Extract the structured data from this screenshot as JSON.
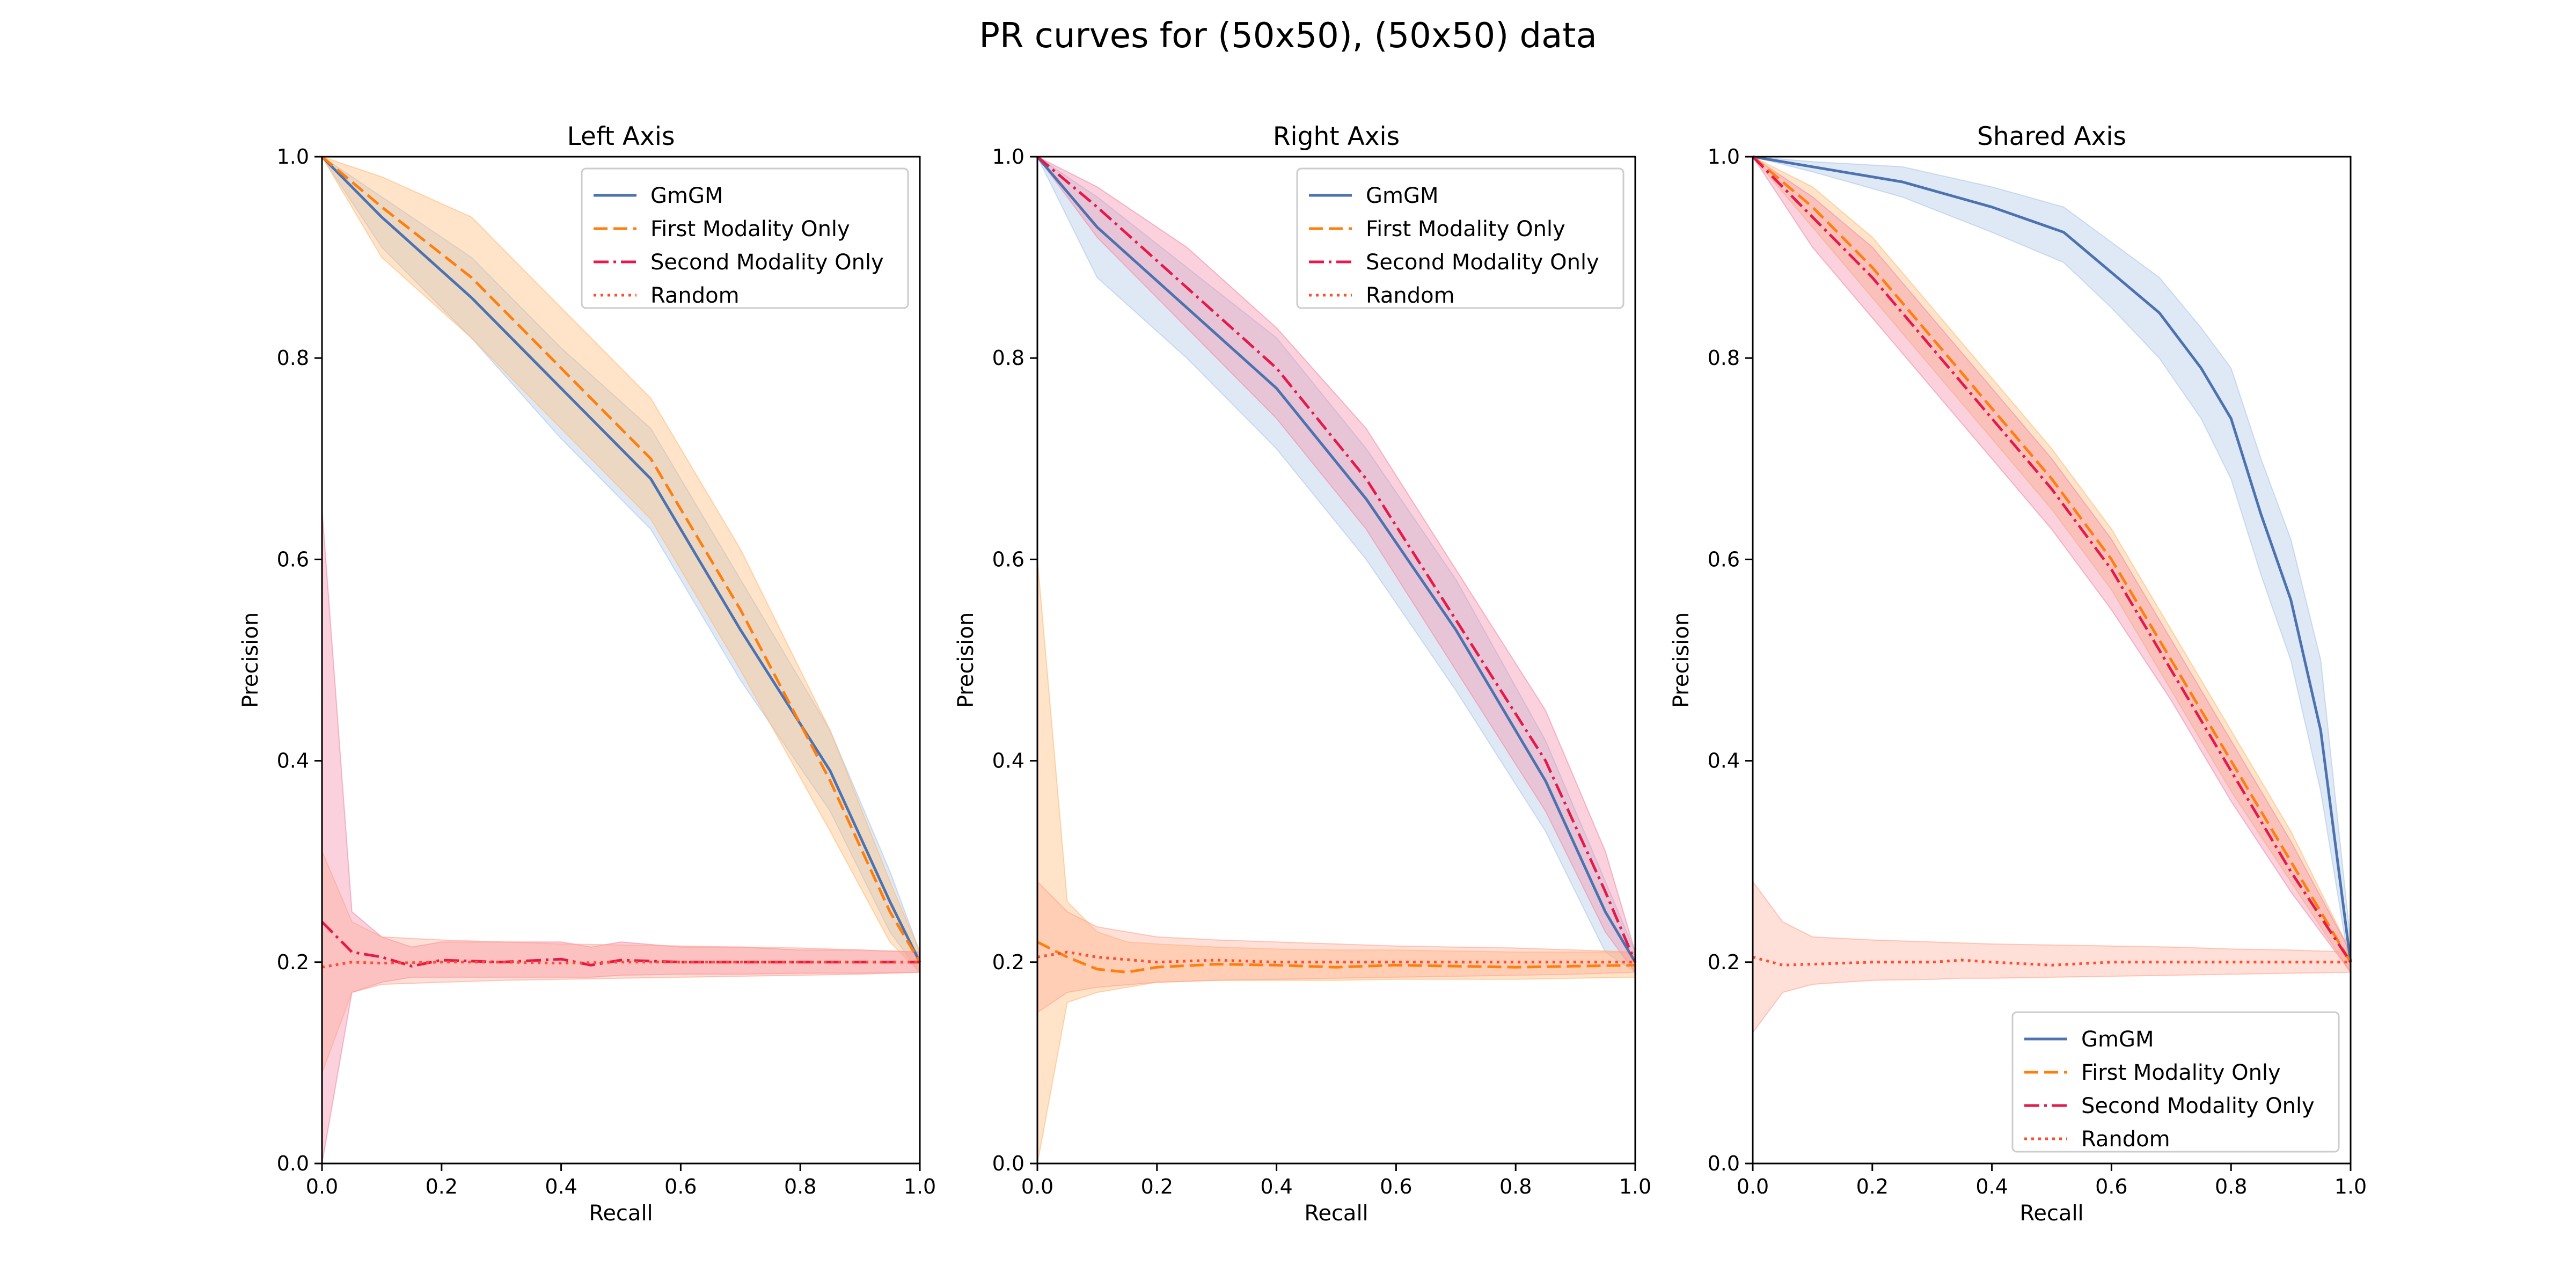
{
  "figure": {
    "title": "PR curves for (50x50), (50x50) data"
  },
  "styles": {
    "series_colors": [
      "#4c72b0",
      "#ff7f0e",
      "#e6194b",
      "#ff4d2e"
    ],
    "band_colors": [
      "#aec7e8",
      "#ffbb78",
      "#f28ca8",
      "#ffa590"
    ],
    "band_opacity": [
      0.4,
      0.4,
      0.4,
      0.35
    ],
    "dash": [
      "",
      "26,11",
      "28,9,5,9",
      "5,8"
    ]
  },
  "chart_data": [
    {
      "type": "line",
      "title": "Left Axis",
      "xlabel": "Recall",
      "ylabel": "Precision",
      "xlim": [
        0,
        1
      ],
      "ylim": [
        0,
        1
      ],
      "xticks": [
        "0.0",
        "0.2",
        "0.4",
        "0.6",
        "0.8",
        "1.0"
      ],
      "yticks": [
        "0.0",
        "0.2",
        "0.4",
        "0.6",
        "0.8",
        "1.0"
      ],
      "legend": "upper-right",
      "series": [
        {
          "name": "GmGM",
          "x": [
            0,
            0.1,
            0.25,
            0.4,
            0.55,
            0.7,
            0.85,
            0.95,
            1.0
          ],
          "y": [
            1.0,
            0.94,
            0.86,
            0.77,
            0.68,
            0.53,
            0.39,
            0.26,
            0.2
          ],
          "lower": [
            1.0,
            0.91,
            0.82,
            0.72,
            0.63,
            0.48,
            0.35,
            0.23,
            0.19
          ],
          "upper": [
            1.0,
            0.96,
            0.9,
            0.81,
            0.73,
            0.58,
            0.43,
            0.29,
            0.21
          ]
        },
        {
          "name": "First Modality Only",
          "x": [
            0,
            0.1,
            0.25,
            0.4,
            0.55,
            0.7,
            0.85,
            0.95,
            1.0
          ],
          "y": [
            1.0,
            0.95,
            0.88,
            0.79,
            0.7,
            0.55,
            0.38,
            0.25,
            0.2
          ],
          "lower": [
            1.0,
            0.9,
            0.82,
            0.73,
            0.64,
            0.49,
            0.33,
            0.22,
            0.19
          ],
          "upper": [
            1.0,
            0.98,
            0.94,
            0.85,
            0.76,
            0.61,
            0.43,
            0.28,
            0.21
          ]
        },
        {
          "name": "Second Modality Only",
          "x": [
            0,
            0.05,
            0.1,
            0.15,
            0.2,
            0.3,
            0.4,
            0.45,
            0.5,
            0.6,
            0.7,
            0.8,
            0.9,
            1.0
          ],
          "y": [
            0.24,
            0.21,
            0.205,
            0.196,
            0.202,
            0.2,
            0.203,
            0.197,
            0.202,
            0.2,
            0.2,
            0.2,
            0.2,
            0.2
          ],
          "lower": [
            0.0,
            0.17,
            0.18,
            0.185,
            0.185,
            0.185,
            0.185,
            0.185,
            0.187,
            0.188,
            0.188,
            0.189,
            0.189,
            0.19
          ],
          "upper": [
            0.65,
            0.25,
            0.225,
            0.215,
            0.22,
            0.22,
            0.22,
            0.215,
            0.22,
            0.215,
            0.215,
            0.212,
            0.212,
            0.21
          ]
        },
        {
          "name": "Random",
          "x": [
            0,
            0.05,
            0.1,
            0.2,
            0.3,
            0.4,
            0.5,
            0.6,
            0.7,
            0.8,
            0.9,
            1.0
          ],
          "y": [
            0.195,
            0.2,
            0.199,
            0.2,
            0.2,
            0.199,
            0.2,
            0.2,
            0.2,
            0.2,
            0.2,
            0.2
          ],
          "lower": [
            0.09,
            0.17,
            0.178,
            0.18,
            0.182,
            0.183,
            0.184,
            0.185,
            0.186,
            0.187,
            0.188,
            0.19
          ],
          "upper": [
            0.31,
            0.24,
            0.225,
            0.222,
            0.22,
            0.218,
            0.217,
            0.216,
            0.215,
            0.214,
            0.212,
            0.21
          ]
        }
      ]
    },
    {
      "type": "line",
      "title": "Right Axis",
      "xlabel": "Recall",
      "ylabel": "Precision",
      "xlim": [
        0,
        1
      ],
      "ylim": [
        0,
        1
      ],
      "xticks": [
        "0.0",
        "0.2",
        "0.4",
        "0.6",
        "0.8",
        "1.0"
      ],
      "yticks": [
        "0.0",
        "0.2",
        "0.4",
        "0.6",
        "0.8",
        "1.0"
      ],
      "legend": "upper-right",
      "series": [
        {
          "name": "GmGM",
          "x": [
            0,
            0.1,
            0.25,
            0.4,
            0.55,
            0.7,
            0.85,
            0.95,
            1.0
          ],
          "y": [
            1.0,
            0.93,
            0.85,
            0.77,
            0.66,
            0.53,
            0.38,
            0.25,
            0.2
          ],
          "lower": [
            1.0,
            0.88,
            0.8,
            0.71,
            0.6,
            0.47,
            0.33,
            0.21,
            0.19
          ],
          "upper": [
            1.0,
            0.96,
            0.89,
            0.82,
            0.71,
            0.58,
            0.42,
            0.28,
            0.21
          ]
        },
        {
          "name": "First Modality Only",
          "x": [
            0,
            0.05,
            0.1,
            0.15,
            0.2,
            0.3,
            0.4,
            0.5,
            0.6,
            0.7,
            0.8,
            0.9,
            1.0
          ],
          "y": [
            0.22,
            0.205,
            0.193,
            0.19,
            0.195,
            0.198,
            0.197,
            0.195,
            0.197,
            0.196,
            0.195,
            0.196,
            0.197
          ],
          "lower": [
            0.0,
            0.16,
            0.17,
            0.175,
            0.18,
            0.182,
            0.182,
            0.182,
            0.183,
            0.183,
            0.183,
            0.184,
            0.185
          ],
          "upper": [
            0.6,
            0.26,
            0.23,
            0.22,
            0.218,
            0.215,
            0.213,
            0.212,
            0.212,
            0.211,
            0.21,
            0.21,
            0.21
          ]
        },
        {
          "name": "Second Modality Only",
          "x": [
            0,
            0.1,
            0.25,
            0.4,
            0.55,
            0.7,
            0.85,
            0.95,
            1.0
          ],
          "y": [
            1.0,
            0.95,
            0.87,
            0.79,
            0.68,
            0.54,
            0.4,
            0.27,
            0.2
          ],
          "lower": [
            1.0,
            0.92,
            0.83,
            0.74,
            0.63,
            0.49,
            0.35,
            0.23,
            0.19
          ],
          "upper": [
            1.0,
            0.97,
            0.91,
            0.83,
            0.73,
            0.59,
            0.45,
            0.31,
            0.21
          ]
        },
        {
          "name": "Random",
          "x": [
            0,
            0.05,
            0.1,
            0.2,
            0.3,
            0.4,
            0.5,
            0.6,
            0.7,
            0.8,
            0.9,
            1.0
          ],
          "y": [
            0.205,
            0.21,
            0.205,
            0.2,
            0.202,
            0.2,
            0.2,
            0.2,
            0.2,
            0.2,
            0.2,
            0.2
          ],
          "lower": [
            0.15,
            0.17,
            0.175,
            0.18,
            0.182,
            0.183,
            0.184,
            0.185,
            0.186,
            0.187,
            0.188,
            0.19
          ],
          "upper": [
            0.28,
            0.25,
            0.235,
            0.225,
            0.222,
            0.22,
            0.218,
            0.216,
            0.215,
            0.214,
            0.212,
            0.21
          ]
        }
      ]
    },
    {
      "type": "line",
      "title": "Shared Axis",
      "xlabel": "Recall",
      "ylabel": "Precision",
      "xlim": [
        0,
        1
      ],
      "ylim": [
        0,
        1
      ],
      "xticks": [
        "0.0",
        "0.2",
        "0.4",
        "0.6",
        "0.8",
        "1.0"
      ],
      "yticks": [
        "0.0",
        "0.2",
        "0.4",
        "0.6",
        "0.8",
        "1.0"
      ],
      "legend": "lower-right",
      "series": [
        {
          "name": "GmGM",
          "x": [
            0,
            0.1,
            0.25,
            0.4,
            0.52,
            0.6,
            0.68,
            0.75,
            0.8,
            0.85,
            0.9,
            0.95,
            1.0
          ],
          "y": [
            1.0,
            0.99,
            0.975,
            0.95,
            0.925,
            0.885,
            0.845,
            0.79,
            0.74,
            0.645,
            0.56,
            0.43,
            0.2
          ],
          "lower": [
            1.0,
            0.985,
            0.96,
            0.925,
            0.895,
            0.85,
            0.8,
            0.74,
            0.68,
            0.585,
            0.5,
            0.37,
            0.19
          ],
          "upper": [
            1.0,
            0.995,
            0.99,
            0.97,
            0.95,
            0.915,
            0.88,
            0.83,
            0.79,
            0.7,
            0.62,
            0.5,
            0.22
          ]
        },
        {
          "name": "First Modality Only",
          "x": [
            0,
            0.1,
            0.2,
            0.3,
            0.4,
            0.5,
            0.6,
            0.7,
            0.8,
            0.9,
            1.0
          ],
          "y": [
            1.0,
            0.95,
            0.89,
            0.82,
            0.75,
            0.68,
            0.6,
            0.5,
            0.4,
            0.3,
            0.2
          ],
          "lower": [
            1.0,
            0.93,
            0.86,
            0.79,
            0.72,
            0.65,
            0.57,
            0.47,
            0.37,
            0.28,
            0.19
          ],
          "upper": [
            1.0,
            0.97,
            0.92,
            0.85,
            0.78,
            0.71,
            0.63,
            0.53,
            0.43,
            0.33,
            0.21
          ]
        },
        {
          "name": "Second Modality Only",
          "x": [
            0,
            0.1,
            0.2,
            0.3,
            0.4,
            0.5,
            0.6,
            0.7,
            0.8,
            0.9,
            1.0
          ],
          "y": [
            1.0,
            0.94,
            0.88,
            0.81,
            0.74,
            0.67,
            0.59,
            0.49,
            0.39,
            0.29,
            0.2
          ],
          "lower": [
            1.0,
            0.91,
            0.84,
            0.77,
            0.7,
            0.63,
            0.55,
            0.46,
            0.36,
            0.27,
            0.19
          ],
          "upper": [
            1.0,
            0.96,
            0.91,
            0.84,
            0.77,
            0.7,
            0.62,
            0.52,
            0.42,
            0.32,
            0.21
          ]
        },
        {
          "name": "Random",
          "x": [
            0,
            0.05,
            0.1,
            0.2,
            0.3,
            0.35,
            0.4,
            0.5,
            0.6,
            0.7,
            0.8,
            0.9,
            1.0
          ],
          "y": [
            0.205,
            0.197,
            0.198,
            0.2,
            0.2,
            0.202,
            0.2,
            0.197,
            0.2,
            0.2,
            0.2,
            0.2,
            0.2
          ],
          "lower": [
            0.13,
            0.17,
            0.178,
            0.182,
            0.183,
            0.184,
            0.184,
            0.185,
            0.186,
            0.187,
            0.188,
            0.189,
            0.19
          ],
          "upper": [
            0.28,
            0.24,
            0.225,
            0.222,
            0.22,
            0.219,
            0.218,
            0.217,
            0.216,
            0.215,
            0.213,
            0.212,
            0.21
          ]
        }
      ]
    }
  ]
}
